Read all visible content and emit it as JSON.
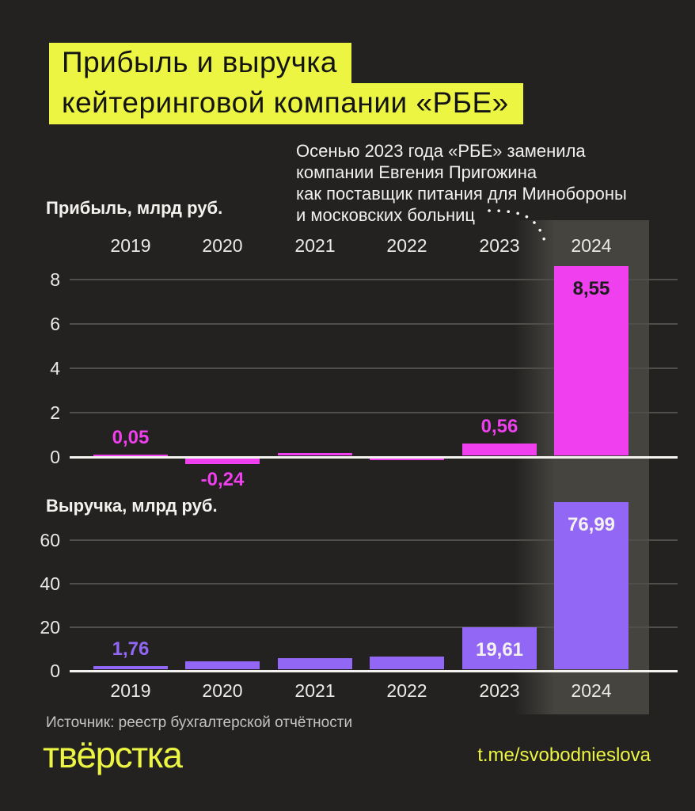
{
  "title": {
    "line1": "Прибыль и выручка",
    "line2": "кейтеринговой компании «РБЕ»"
  },
  "annotation": {
    "lines": [
      "Осенью 2023 года «РБЕ» заменила",
      "компании Евгения Пригожина",
      "как поставщик питания для Минобороны",
      "и московских больниц"
    ]
  },
  "colors": {
    "background": "#232221",
    "band": "#45443f",
    "magenta": "#ef3fee",
    "purple": "#9267f6",
    "yellow": "#ecf542",
    "text_light": "#f4f2ef",
    "text_muted": "#c6c4c1",
    "gridline": "#4f4e4b",
    "axis": "#f5f3ef",
    "label_dark": "#1c1c1c"
  },
  "chart_data": [
    {
      "type": "bar",
      "title": "Прибыль, млрд руб.",
      "categories": [
        "2019",
        "2020",
        "2021",
        "2022",
        "2023",
        "2024"
      ],
      "values": [
        0.05,
        -0.24,
        0.13,
        -0.06,
        0.56,
        8.55
      ],
      "unlabeled_values_are_estimates": true,
      "labels": [
        {
          "text": "0,05",
          "pos": "above",
          "style": "accent"
        },
        {
          "text": "-0,24",
          "pos": "below",
          "style": "accent"
        },
        null,
        null,
        {
          "text": "0,56",
          "pos": "above",
          "style": "accent"
        },
        {
          "text": "8,55",
          "pos": "inside",
          "style": "dark"
        }
      ],
      "yticks": [
        8,
        6,
        4,
        2,
        0
      ],
      "ylim": [
        -0.5,
        8.8
      ],
      "grid": true,
      "legend": "none",
      "color_key": "magenta",
      "highlighted_category": "2024"
    },
    {
      "type": "bar",
      "title": "Выручка, млрд руб.",
      "categories": [
        "2019",
        "2020",
        "2021",
        "2022",
        "2023",
        "2024"
      ],
      "values": [
        1.76,
        3.9,
        5.3,
        6.1,
        19.61,
        76.99
      ],
      "unlabeled_values_are_estimates": true,
      "labels": [
        {
          "text": "1,76",
          "pos": "above",
          "style": "accent"
        },
        null,
        null,
        null,
        {
          "text": "19,61",
          "pos": "inside",
          "style": "light"
        },
        {
          "text": "76,99",
          "pos": "inside",
          "style": "light"
        }
      ],
      "yticks": [
        60,
        40,
        20,
        0
      ],
      "ylim": [
        0,
        80
      ],
      "grid": true,
      "legend": "none",
      "color_key": "purple",
      "highlighted_category": "2024"
    }
  ],
  "footer": {
    "source": "Источник: реестр бухгалтерской отчётности",
    "logo": "твёрстка",
    "link": "t.me/svobodnieslova"
  }
}
